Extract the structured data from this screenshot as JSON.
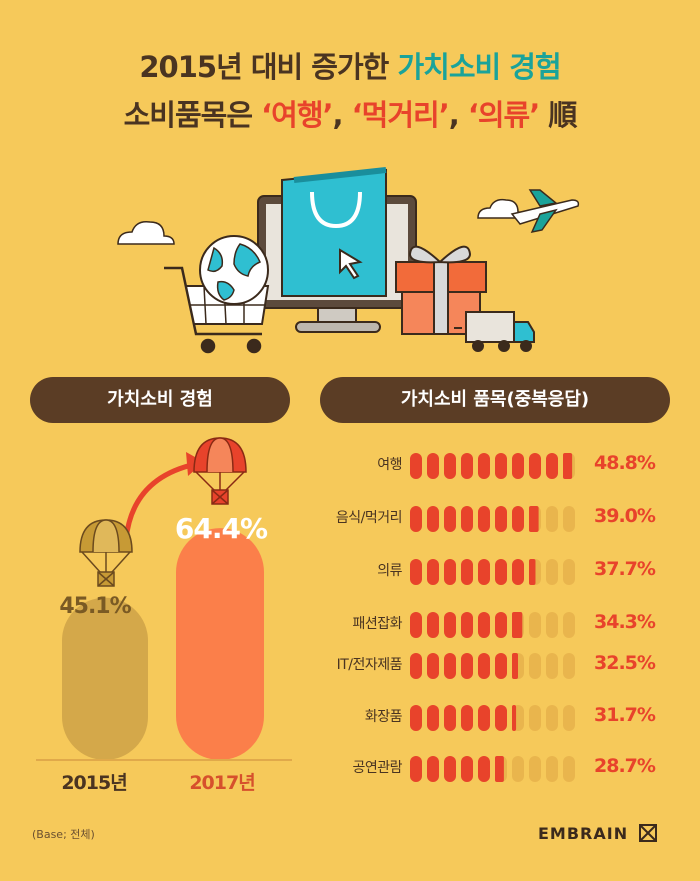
{
  "title": {
    "line1_prefix": "2015년 대비 증가한 ",
    "line1_highlight": "가치소비 경험",
    "line2_prefix": "소비품목은 ",
    "line2_item1": "‘여행’",
    "line2_sep1": ", ",
    "line2_item2": "‘먹거리’",
    "line2_sep2": ", ",
    "line2_item3": "‘의류’",
    "line2_suffix": " 順"
  },
  "left_panel": {
    "header": "가치소비 경험"
  },
  "right_panel": {
    "header": "가치소비 품목(중복응답)"
  },
  "colors": {
    "background": "#f6c95a",
    "bar_2015": "#d4a84a",
    "bar_2017": "#fb7f4a",
    "dots_filled": "#e8432b",
    "dots_empty": "#e9b54d",
    "pill": "#5b3d25",
    "accent_red": "#e8432b",
    "accent_teal": "#1aa39a"
  },
  "chart_data": [
    {
      "type": "bar",
      "categories": [
        "2015년",
        "2017년"
      ],
      "values": [
        45.1,
        64.4
      ],
      "value_labels": [
        "45.1%",
        "64.4%"
      ],
      "ylim": [
        0,
        100
      ]
    },
    {
      "type": "bar",
      "orientation": "horizontal",
      "categories": [
        "여행",
        "음식/먹거리",
        "의류",
        "패션잡화",
        "IT/전자제품",
        "화장품",
        "공연관람"
      ],
      "values": [
        48.8,
        39.0,
        37.7,
        34.3,
        32.5,
        31.7,
        28.7
      ],
      "value_labels": [
        "48.8%",
        "39.0%",
        "37.7%",
        "34.3%",
        "32.5%",
        "31.7%",
        "28.7%"
      ],
      "xlim": [
        0,
        100
      ]
    }
  ],
  "footer": {
    "base_note": "(Base; 전체)",
    "brand": "EMBRAIN"
  }
}
